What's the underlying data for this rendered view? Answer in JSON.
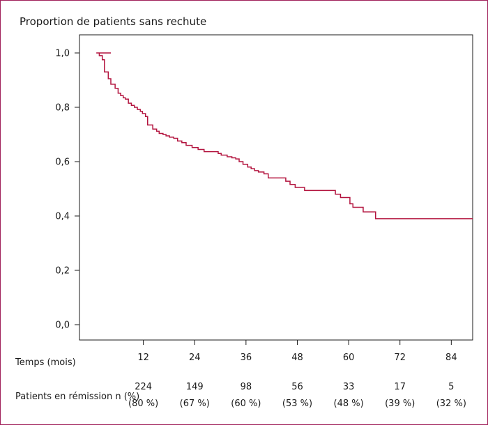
{
  "chart_data": {
    "type": "line",
    "title": "Proportion de patients sans rechute",
    "xlabel": "Temps (mois)",
    "ylabel": "",
    "xlim": [
      0,
      89
    ],
    "ylim": [
      0,
      1.05
    ],
    "grid": false,
    "line_color": "#b3143f",
    "x_ticks": [
      12,
      24,
      36,
      48,
      60,
      72,
      84
    ],
    "x_tick_labels": [
      "12",
      "24",
      "36",
      "48",
      "60",
      "72",
      "84"
    ],
    "y_ticks": [
      0,
      0.2,
      0.4,
      0.6,
      0.8,
      1.0
    ],
    "y_tick_labels": [
      "0,0",
      "0,2",
      "0,4",
      "0,6",
      "0,8",
      "1,0"
    ],
    "series": [
      {
        "x": [
          0,
          1,
          1.7,
          2.4,
          2.9,
          3.8,
          4.4,
          5.4,
          6.1,
          6.7,
          7.3,
          7.8,
          8.5,
          9.2,
          9.9,
          10.6,
          11.3,
          11.8,
          12.5,
          13.0,
          13.7,
          14.2,
          15.1,
          15.7,
          16.6,
          17.3,
          18.1,
          19.1,
          20.0,
          21.0,
          22.0,
          23.4,
          24.8,
          26.2,
          27.6,
          28.3,
          29.5,
          30.2,
          31.6,
          32.7,
          33.6,
          34.4,
          35.3,
          36.4,
          37.2,
          38.0,
          38.9,
          40.2,
          41.2,
          42.1,
          43.0,
          44.1,
          45.3,
          46.3,
          47.5,
          48.6,
          49.7,
          51.3,
          52.3,
          53.3,
          54.2,
          55.4,
          56.9,
          58.1,
          59.3,
          60.3,
          61.0,
          62.3,
          63.4,
          64.5,
          65.2,
          66.3,
          67.4,
          68.7,
          69.6,
          70.5,
          71.3,
          72.1,
          73.0,
          74.6,
          76.0,
          78.5,
          81.0,
          84.0,
          89.0
        ],
        "y": [
          1.0,
          1.0,
          0.99,
          0.975,
          0.93,
          0.905,
          0.885,
          0.87,
          0.852,
          0.843,
          0.835,
          0.83,
          0.815,
          0.807,
          0.8,
          0.792,
          0.785,
          0.777,
          0.766,
          0.735,
          0.735,
          0.72,
          0.712,
          0.704,
          0.7,
          0.695,
          0.69,
          0.686,
          0.676,
          0.67,
          0.66,
          0.652,
          0.645,
          0.637,
          0.637,
          0.637,
          0.63,
          0.624,
          0.618,
          0.614,
          0.61,
          0.6,
          0.59,
          0.58,
          0.574,
          0.567,
          0.562,
          0.555,
          0.54,
          0.54,
          0.54,
          0.54,
          0.528,
          0.516,
          0.505,
          0.505,
          0.494,
          0.494,
          0.494,
          0.494,
          0.494,
          0.494,
          0.48,
          0.468,
          0.468,
          0.445,
          0.432,
          0.432,
          0.415,
          0.415,
          0.415,
          0.39,
          0.39,
          0.39,
          0.39,
          0.39,
          0.39,
          0.39,
          0.39,
          0.39,
          0.39,
          0.39,
          0.39,
          0.39,
          0.39
        ]
      }
    ]
  },
  "risk_table": {
    "label": "Patients en rémission n (%)",
    "counts": [
      "224",
      "149",
      "98",
      "56",
      "33",
      "17",
      "5"
    ],
    "percents": [
      "(80 %)",
      "(67 %)",
      "(60 %)",
      "(53 %)",
      "(48 %)",
      "(39 %)",
      "(32 %)"
    ]
  },
  "colors": {
    "frame": "#a0205a",
    "axis": "#1a1a1a",
    "curve": "#b3143f"
  }
}
